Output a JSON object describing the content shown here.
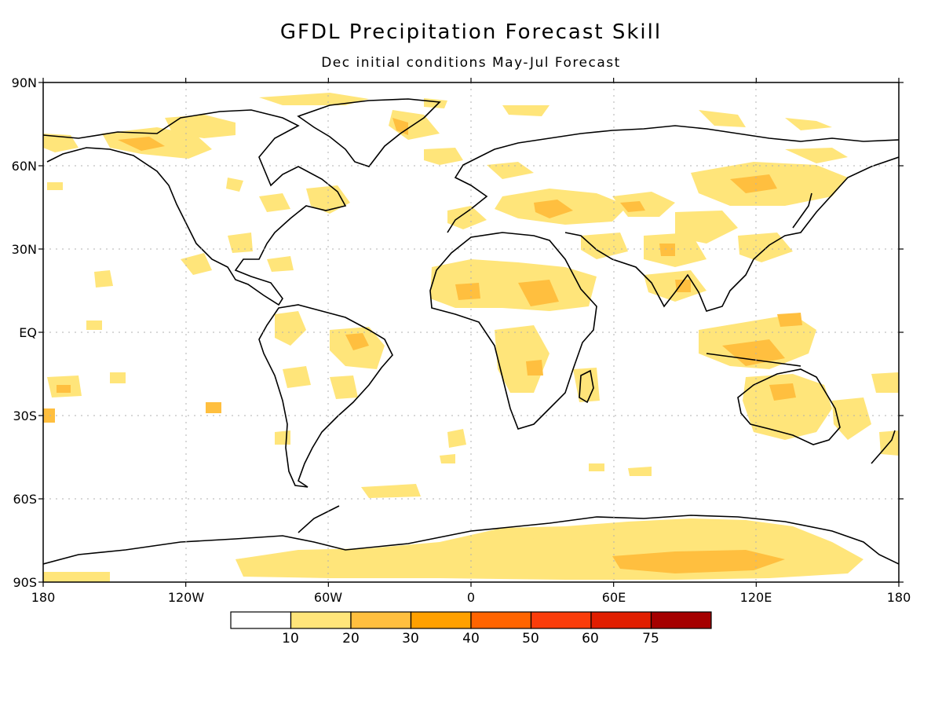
{
  "title": "GFDL Precipitation Forecast Skill",
  "subtitle": "Dec initial conditions   May-Jul Forecast",
  "lat_labels": [
    "90N",
    "60N",
    "30N",
    "EQ",
    "30S",
    "60S",
    "90S"
  ],
  "lon_labels": [
    "180",
    "120W",
    "60W",
    "0",
    "60E",
    "120E",
    "180"
  ],
  "colorbar": {
    "labels": [
      "10",
      "20",
      "30",
      "40",
      "50",
      "60",
      "75"
    ],
    "colors": [
      "#ffffff",
      "#ffe57a",
      "#ffbf3f",
      "#ffa000",
      "#ff6400",
      "#fa3c0a",
      "#e11e00",
      "#a50000"
    ]
  },
  "colors": {
    "land_outline": "#000000",
    "grid": "#b0b0b0",
    "frame": "#000000"
  }
}
